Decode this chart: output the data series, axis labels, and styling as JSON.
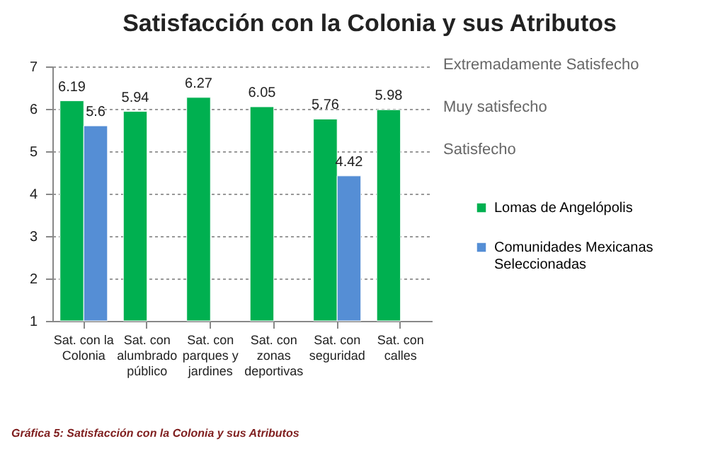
{
  "chart_data": {
    "type": "bar",
    "title": "Satisfacción con la Colonia y sus Atributos",
    "categories": [
      "Sat. con la Colonia",
      "Sat. con alumbrado público",
      "Sat. con parques y jardines",
      "Sat. con zonas deportivas",
      "Sat. con seguridad",
      "Sat. con calles"
    ],
    "series": [
      {
        "name": "Lomas de Angelópolis",
        "color": "#00b050",
        "values": [
          6.19,
          5.94,
          6.27,
          6.05,
          5.76,
          5.98
        ]
      },
      {
        "name": "Comunidades Mexicanas Seleccionadas",
        "color": "#558ed5",
        "values": [
          5.6,
          null,
          null,
          null,
          4.42,
          null
        ]
      }
    ],
    "ylim": [
      1,
      7
    ],
    "yticks": [
      1,
      2,
      3,
      4,
      5,
      6,
      7
    ],
    "grid": "y",
    "legend": "right",
    "data_labels": true,
    "annotations": [
      "Extremadamente Satisfecho",
      "Muy satisfecho",
      "Satisfecho",
      "Gráfica 5: Satisfacción  con la Colonia y sus Atributos"
    ]
  }
}
